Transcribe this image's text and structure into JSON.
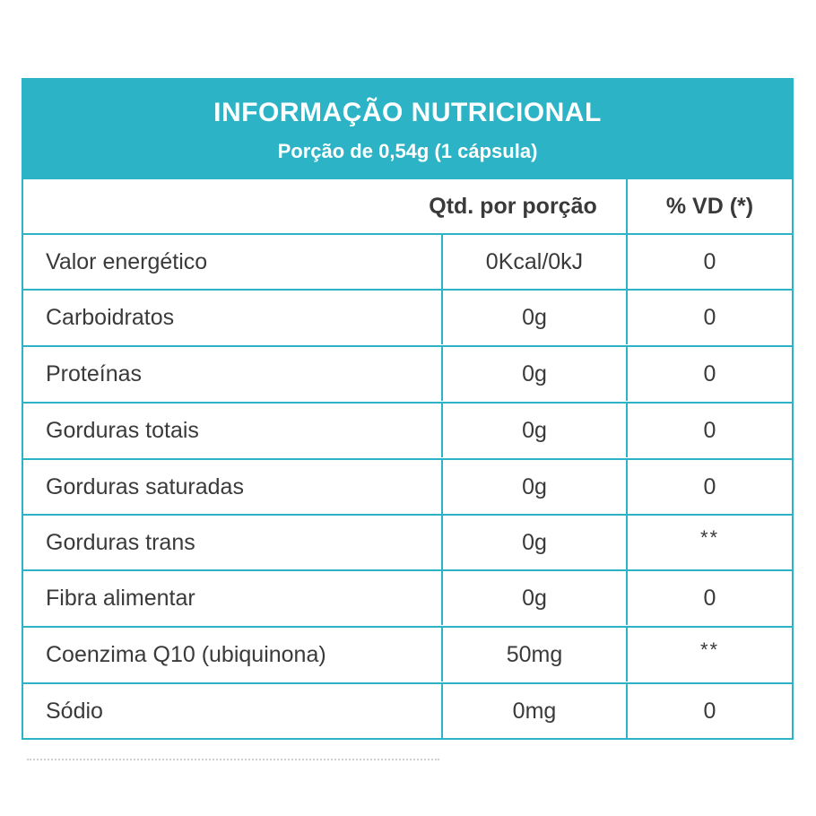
{
  "header": {
    "title": "INFORMAÇÃO NUTRICIONAL",
    "subtitle": "Porção de 0,54g (1 cápsula)"
  },
  "columns": {
    "qty": "Qtd. por porção",
    "vd": "% VD (*)"
  },
  "rows": [
    {
      "name": "Valor energético",
      "qty": "0Kcal/0kJ",
      "vd": "0"
    },
    {
      "name": "Carboidratos",
      "qty": "0g",
      "vd": "0"
    },
    {
      "name": "Proteínas",
      "qty": "0g",
      "vd": "0"
    },
    {
      "name": "Gorduras totais",
      "qty": "0g",
      "vd": "0"
    },
    {
      "name": "Gorduras saturadas",
      "qty": "0g",
      "vd": "0"
    },
    {
      "name": "Gorduras trans",
      "qty": "0g",
      "vd": "**"
    },
    {
      "name": "Fibra alimentar",
      "qty": "0g",
      "vd": "0"
    },
    {
      "name": "Coenzima Q10 (ubiquinona)",
      "qty": "50mg",
      "vd": "**"
    },
    {
      "name": "Sódio",
      "qty": "0mg",
      "vd": "0"
    }
  ],
  "colors": {
    "accent": "#2cb3c6",
    "text": "#3a3a3a"
  }
}
